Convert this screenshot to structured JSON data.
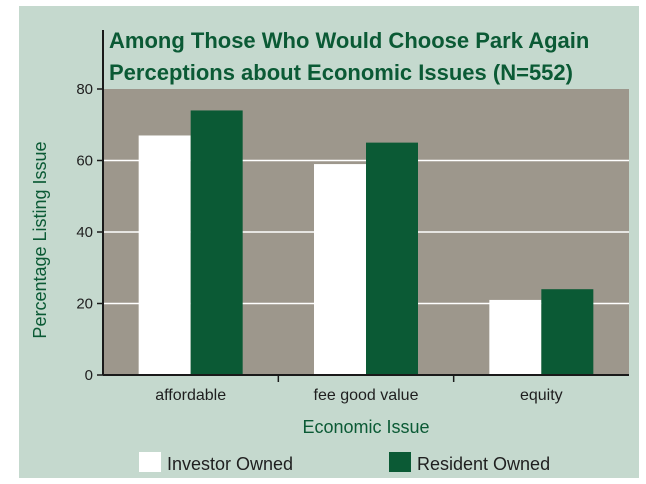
{
  "chart_data": {
    "type": "bar",
    "title": "Among Those Who Would Choose Park Again",
    "subtitle": "Perceptions about Economic Issues (N=552)",
    "xlabel": "Economic Issue",
    "ylabel": "Percentage Listing Issue",
    "categories": [
      "affordable",
      "fee good value",
      "equity"
    ],
    "series": [
      {
        "name": "Investor Owned",
        "values": [
          67,
          59,
          21
        ]
      },
      {
        "name": "Resident Owned",
        "values": [
          74,
          65,
          24
        ]
      }
    ],
    "ylim": [
      0,
      80
    ],
    "yticks": [
      "0",
      "20",
      "40",
      "60",
      "80"
    ],
    "grid": true,
    "legend_position": "bottom"
  },
  "colors": {
    "background": "#c5d9ce",
    "plot_area": "#9d978c",
    "title": "#0b5a35",
    "axis_text": "#1f1f1f",
    "axis_label": "#0b5a35",
    "gridline": "#ffffff",
    "investor": "#ffffff",
    "resident": "#0b5a35"
  }
}
